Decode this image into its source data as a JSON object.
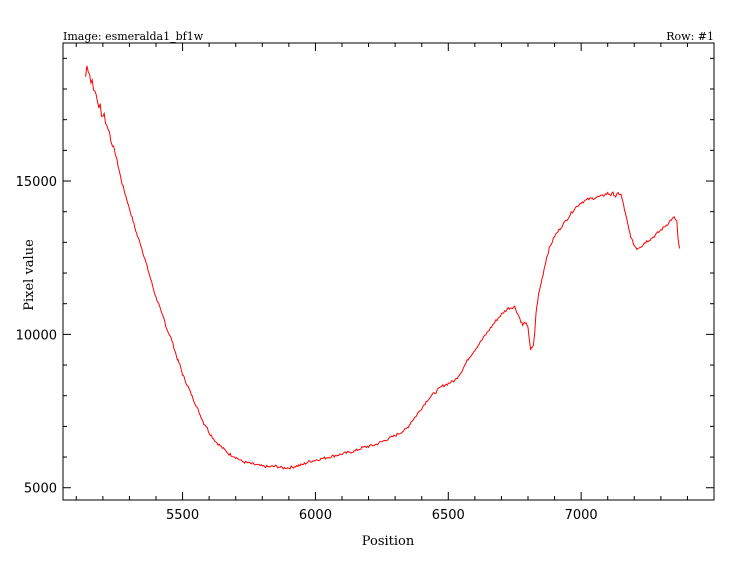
{
  "header": {
    "image_label": "Image: esmeralda1_bf1w",
    "row_label": "Row: #1"
  },
  "chart_data": {
    "type": "line",
    "xlabel": "Position",
    "ylabel": "Pixel value",
    "xlim": [
      5050,
      7500
    ],
    "ylim": [
      4600,
      19500
    ],
    "xticks": [
      5500,
      6000,
      6500,
      7000
    ],
    "yticks": [
      5000,
      10000,
      15000
    ],
    "grid": false,
    "line_color": "#ff0000",
    "series": [
      {
        "x": [
          5135,
          5140,
          5145,
          5150,
          5155,
          5160,
          5165,
          5170,
          5175,
          5180,
          5185,
          5190,
          5195,
          5200,
          5205,
          5210,
          5215,
          5220,
          5225,
          5230,
          5240,
          5250,
          5260,
          5270,
          5280,
          5290,
          5300,
          5310,
          5320,
          5330,
          5340,
          5350,
          5360,
          5370,
          5380,
          5390,
          5400,
          5410,
          5420,
          5430,
          5440,
          5450,
          5460,
          5470,
          5480,
          5490,
          5500,
          5510,
          5520,
          5530,
          5540,
          5550,
          5560,
          5570,
          5580,
          5590,
          5600,
          5625,
          5650,
          5675,
          5700,
          5725,
          5750,
          5775,
          5800,
          5825,
          5850,
          5875,
          5900,
          5925,
          5950,
          5975,
          6000,
          6025,
          6050,
          6075,
          6100,
          6125,
          6150,
          6175,
          6200,
          6225,
          6250,
          6275,
          6300,
          6320,
          6340,
          6350,
          6360,
          6375,
          6400,
          6425,
          6450,
          6475,
          6500,
          6525,
          6550,
          6575,
          6600,
          6625,
          6650,
          6675,
          6700,
          6725,
          6750,
          6770,
          6780,
          6790,
          6800,
          6810,
          6820,
          6825,
          6830,
          6840,
          6850,
          6860,
          6870,
          6880,
          6900,
          6925,
          6950,
          6975,
          7000,
          7025,
          7050,
          7075,
          7100,
          7110,
          7120,
          7130,
          7140,
          7150,
          7160,
          7170,
          7180,
          7190,
          7200,
          7210,
          7220,
          7230,
          7240,
          7250,
          7260,
          7275,
          7300,
          7325,
          7340,
          7350,
          7355,
          7360,
          7365,
          7370
        ],
        "y": [
          18400,
          18750,
          18600,
          18500,
          18200,
          18300,
          18000,
          17900,
          17800,
          17600,
          17400,
          17500,
          17100,
          17150,
          17200,
          16900,
          16800,
          16700,
          16600,
          16300,
          16100,
          15800,
          15400,
          15000,
          14700,
          14400,
          14100,
          13800,
          13500,
          13200,
          13000,
          12700,
          12400,
          12100,
          11800,
          11500,
          11200,
          11000,
          10700,
          10500,
          10200,
          10000,
          9800,
          9500,
          9200,
          9000,
          8700,
          8500,
          8300,
          8100,
          7900,
          7700,
          7500,
          7300,
          7100,
          7000,
          6800,
          6500,
          6300,
          6100,
          6000,
          5850,
          5800,
          5750,
          5700,
          5680,
          5700,
          5650,
          5650,
          5700,
          5750,
          5850,
          5900,
          5950,
          6000,
          6050,
          6100,
          6150,
          6200,
          6300,
          6350,
          6400,
          6500,
          6600,
          6700,
          6800,
          6900,
          7000,
          7150,
          7300,
          7600,
          7900,
          8100,
          8300,
          8400,
          8500,
          8800,
          9200,
          9500,
          9800,
          10100,
          10400,
          10650,
          10850,
          10900,
          10500,
          10300,
          10400,
          10200,
          9500,
          9600,
          10000,
          10700,
          11300,
          11700,
          12100,
          12500,
          12800,
          13200,
          13500,
          13800,
          14100,
          14300,
          14400,
          14450,
          14500,
          14600,
          14550,
          14600,
          14500,
          14600,
          14550,
          14200,
          13800,
          13400,
          13100,
          12900,
          12800,
          12850,
          12900,
          13000,
          13050,
          13100,
          13200,
          13400,
          13600,
          13750,
          13800,
          13750,
          13700,
          13100,
          12800
        ]
      }
    ]
  }
}
